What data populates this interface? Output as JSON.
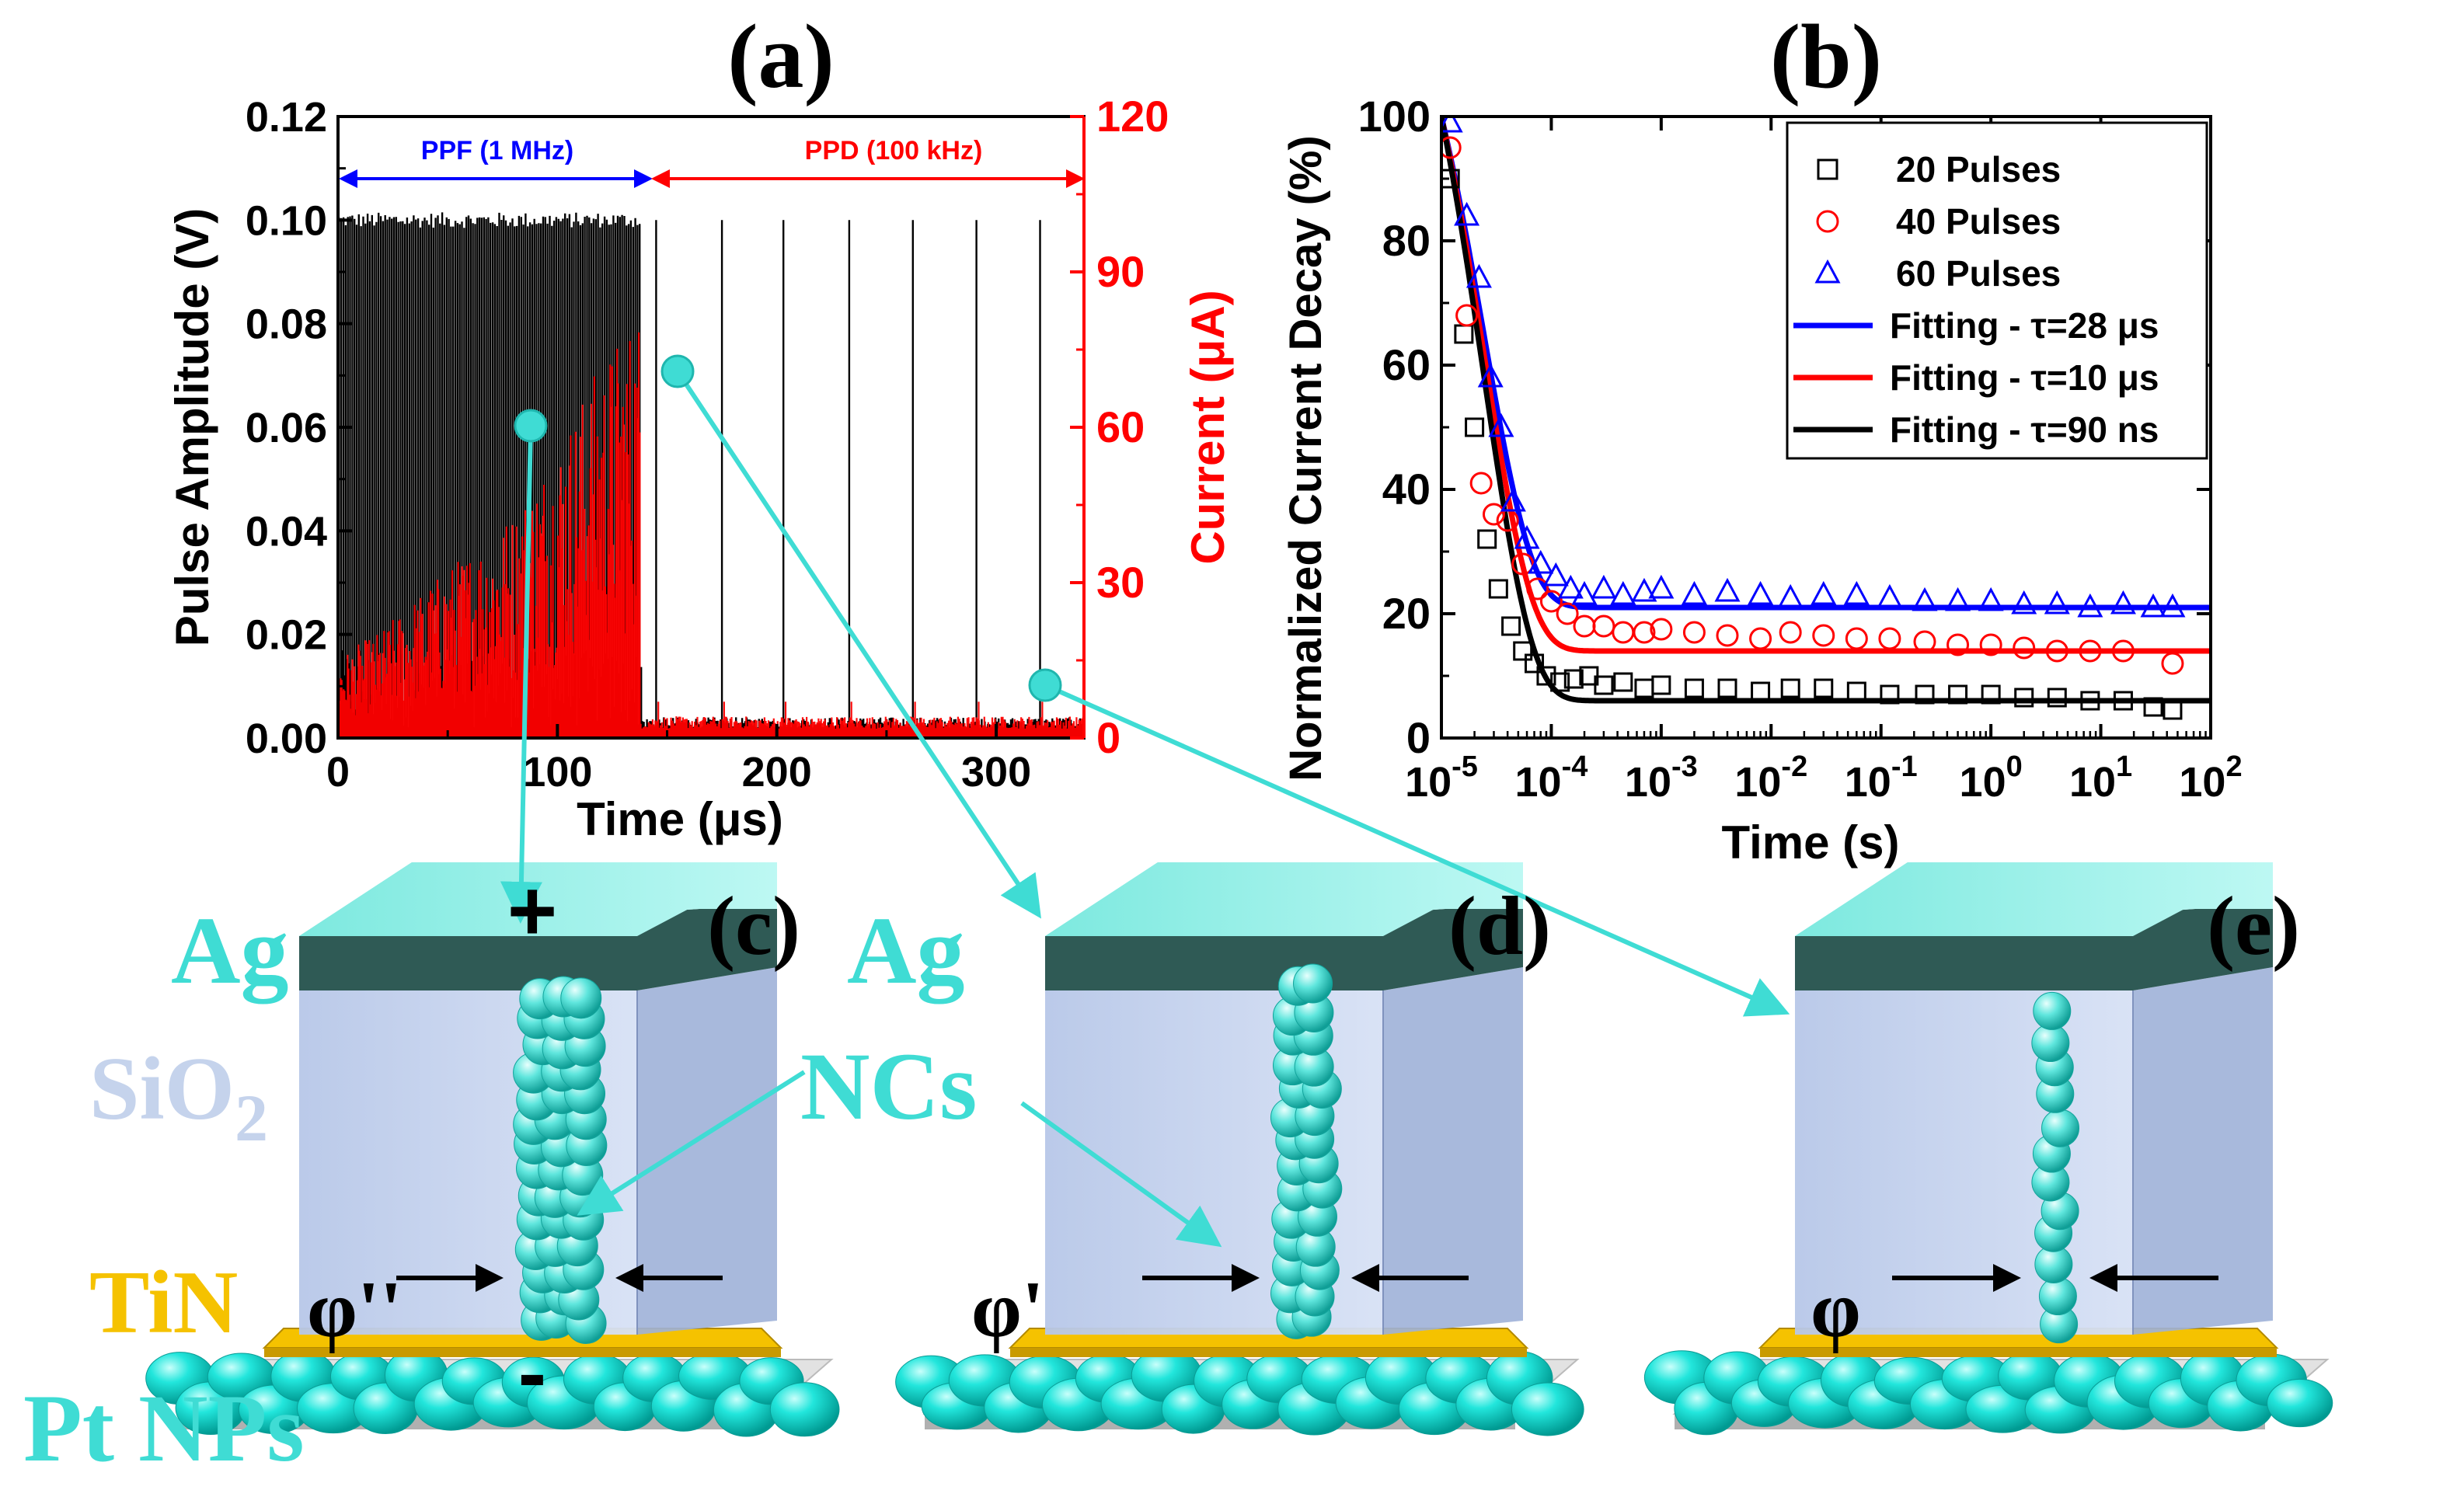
{
  "panel_labels": {
    "a": "(a)",
    "b": "(b)",
    "c": "(c)",
    "d": "(d)",
    "e": "(e)"
  },
  "colors": {
    "cyan": "#3fdcd4",
    "red": "#ff0000",
    "blue": "#0000ff",
    "black": "#000000",
    "tin": "#f5c200",
    "oxide": "#c5d3ec",
    "ag_top": "#8ef0e8",
    "ag_side": "#2f5a55"
  },
  "chart_data": [
    {
      "id": "a",
      "type": "line",
      "title": "(a)",
      "xlabel": "Time (μs)",
      "ylabel_left": "Pulse Amplitude (V)",
      "ylabel_right": "Current (μA)",
      "xlim": [
        0,
        340
      ],
      "ylim_left": [
        0,
        0.12
      ],
      "ylim_right": [
        0,
        120
      ],
      "xticks": [
        "0",
        "100",
        "200",
        "300"
      ],
      "yticks_left": [
        "0.00",
        "0.02",
        "0.04",
        "0.06",
        "0.08",
        "0.10",
        "0.12"
      ],
      "yticks_right": [
        "0",
        "30",
        "60",
        "90",
        "120"
      ],
      "annotations": [
        {
          "text": "PPF (1 MHz)",
          "x_start": 0,
          "x_end": 138,
          "color": "#0000ff"
        },
        {
          "text": "PPD (100 kHz)",
          "x_start": 138,
          "x_end": 335,
          "color": "#ff0000"
        }
      ],
      "series": [
        {
          "name": "Pulse Amplitude",
          "axis": "left",
          "color": "#000000",
          "ppf_window": [
            0,
            138
          ],
          "ppf_period_us": 1,
          "ppf_amplitude": 0.1,
          "ppd_pulse_times": [
            145,
            175,
            203,
            233,
            262,
            291,
            320
          ],
          "ppd_amplitude": 0.1
        },
        {
          "name": "Current",
          "axis": "right",
          "color": "#ff0000",
          "ppf_envelope": {
            "x": [
              0,
              20,
              40,
              60,
              80,
              100,
              120,
              138
            ],
            "y": [
              15,
              20,
              28,
              35,
              42,
              55,
              70,
              80
            ]
          },
          "ppd_baseline": 3
        }
      ]
    },
    {
      "id": "b",
      "type": "scatter",
      "title": "(b)",
      "xlabel": "Time (s)",
      "ylabel": "Normalized Current Decay (%)",
      "xscale": "log",
      "xlim": [
        1e-05,
        100
      ],
      "ylim": [
        0,
        100
      ],
      "xticks": [
        {
          "base": "10",
          "exp": "-5"
        },
        {
          "base": "10",
          "exp": "-4"
        },
        {
          "base": "10",
          "exp": "-3"
        },
        {
          "base": "10",
          "exp": "-2"
        },
        {
          "base": "10",
          "exp": "-1"
        },
        {
          "base": "10",
          "exp": "0"
        },
        {
          "base": "10",
          "exp": "1"
        },
        {
          "base": "10",
          "exp": "2"
        }
      ],
      "yticks": [
        "0",
        "20",
        "40",
        "60",
        "80",
        "100"
      ],
      "legend_position": "top-right",
      "series": [
        {
          "name": "20 Pulses",
          "marker": "square",
          "color": "#000000",
          "x": [
            1.2e-05,
            1.6e-05,
            2e-05,
            2.6e-05,
            3.3e-05,
            4.3e-05,
            5.5e-05,
            7e-05,
            9e-05,
            0.00012,
            0.00016,
            0.00022,
            0.0003,
            0.00045,
            0.0007,
            0.001,
            0.002,
            0.004,
            0.008,
            0.015,
            0.03,
            0.06,
            0.12,
            0.25,
            0.5,
            1,
            2,
            4,
            8,
            16,
            30,
            45
          ],
          "y": [
            90,
            65,
            50,
            32,
            24,
            18,
            14,
            12,
            10,
            9,
            9.5,
            10,
            8.5,
            9,
            8,
            8.5,
            8,
            8,
            7.5,
            8,
            8,
            7.5,
            7,
            7,
            7,
            7,
            6.5,
            6.5,
            6,
            6,
            5,
            4.5
          ]
        },
        {
          "name": "40 Pulses",
          "marker": "circle",
          "color": "#ff0000",
          "x": [
            1.2e-05,
            1.7e-05,
            2.3e-05,
            3e-05,
            4e-05,
            5.5e-05,
            7.5e-05,
            0.0001,
            0.00014,
            0.0002,
            0.0003,
            0.00045,
            0.0007,
            0.001,
            0.002,
            0.004,
            0.008,
            0.015,
            0.03,
            0.06,
            0.12,
            0.25,
            0.5,
            1,
            2,
            4,
            8,
            16,
            45
          ],
          "y": [
            95,
            68,
            41,
            36,
            35,
            28,
            24,
            22,
            20,
            18,
            18,
            17,
            17,
            17.5,
            17,
            16.5,
            16,
            17,
            16.5,
            16,
            16,
            15.5,
            15,
            15,
            14.5,
            14,
            14,
            14,
            12
          ]
        },
        {
          "name": "60 Pulses",
          "marker": "triangle",
          "color": "#0000ff",
          "x": [
            1.2e-05,
            1.7e-05,
            2.2e-05,
            2.8e-05,
            3.5e-05,
            4.5e-05,
            6e-05,
            8e-05,
            0.00011,
            0.00015,
            0.0002,
            0.0003,
            0.00045,
            0.0007,
            0.001,
            0.002,
            0.004,
            0.008,
            0.015,
            0.03,
            0.06,
            0.12,
            0.25,
            0.5,
            1,
            2,
            4,
            8,
            16,
            30,
            45
          ],
          "y": [
            99,
            84,
            74,
            58,
            50,
            38,
            32,
            28,
            26,
            24,
            23,
            24,
            23,
            23.5,
            24,
            23,
            23.5,
            23,
            22.5,
            23,
            23,
            22.5,
            22,
            22,
            22,
            21.5,
            21.5,
            21,
            21.5,
            21,
            21
          ]
        },
        {
          "name": "Fitting - τ=28 μs",
          "type": "line",
          "color": "#0000ff",
          "tau_s": 2.8e-05,
          "plateau": 21
        },
        {
          "name": "Fitting - τ=10 μs",
          "type": "line",
          "color": "#ff0000",
          "tau_s": 1e-05,
          "plateau": 14
        },
        {
          "name": "Fitting - τ=90 ns",
          "type": "line",
          "color": "#000000",
          "tau_s": 9e-08,
          "plateau": 6
        }
      ]
    }
  ],
  "diagram": {
    "labels": {
      "ag_left": "Ag",
      "ag_mid": "Ag",
      "sio2": "SiO",
      "sio2_sub": "2",
      "ncs": "NCs",
      "tin": "TiN",
      "pt_nps": "Pt NPs",
      "plus": "+",
      "minus": "-",
      "phi_c": "φ''",
      "phi_d": "φ'",
      "phi_e": "φ"
    }
  }
}
